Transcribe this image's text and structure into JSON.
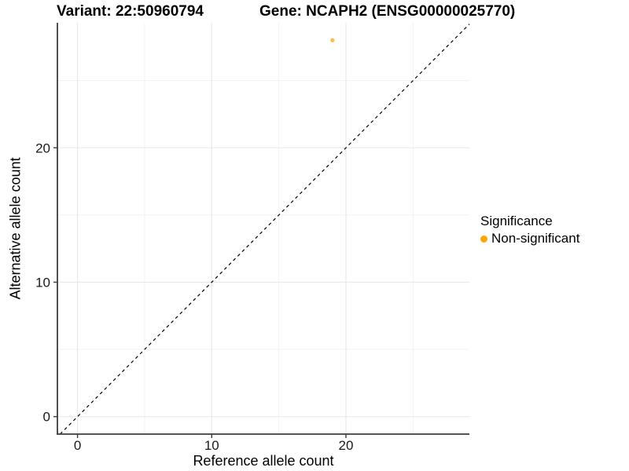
{
  "chart_data": {
    "type": "scatter",
    "title_left": "Variant: 22:50960794",
    "title_right": "Gene: NCAPH2 (ENSG00000025770)",
    "xlabel": "Reference allele count",
    "ylabel": "Alternative allele count",
    "xlim": [
      -1.5,
      29.2
    ],
    "ylim": [
      -1.3,
      29.3
    ],
    "x_major_ticks": [
      0,
      10,
      20
    ],
    "y_major_ticks": [
      0,
      10,
      20
    ],
    "x_minor_ticks": [
      5,
      15,
      25
    ],
    "y_minor_ticks": [
      5,
      15,
      25
    ],
    "grid": "on",
    "identity_line": {
      "style": "dashed",
      "slope": 1,
      "intercept": 0,
      "color": "#000000"
    },
    "series": [
      {
        "name": "Non-significant",
        "color": "#FFA500",
        "point_opacity": 0.75,
        "points": [
          {
            "x": 19,
            "y": 28
          }
        ]
      }
    ],
    "legend": {
      "position": "right",
      "title": "Significance",
      "items": [
        {
          "label": "Non-significant",
          "color": "#FFA500"
        }
      ]
    },
    "colors": {
      "background": "#FFFFFF",
      "grid_major": "#E7E7E7",
      "grid_minor": "#F1F1F1",
      "axis_line": "#3C3C3C",
      "tick_mark": "#3C3C3C",
      "tick_label": "#1A1A1A"
    }
  }
}
